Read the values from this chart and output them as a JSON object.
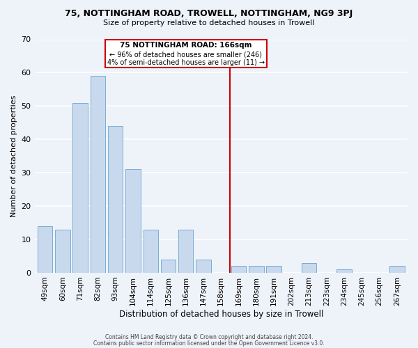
{
  "title1": "75, NOTTINGHAM ROAD, TROWELL, NOTTINGHAM, NG9 3PJ",
  "title2": "Size of property relative to detached houses in Trowell",
  "xlabel": "Distribution of detached houses by size in Trowell",
  "ylabel": "Number of detached properties",
  "bar_labels": [
    "49sqm",
    "60sqm",
    "71sqm",
    "82sqm",
    "93sqm",
    "104sqm",
    "114sqm",
    "125sqm",
    "136sqm",
    "147sqm",
    "158sqm",
    "169sqm",
    "180sqm",
    "191sqm",
    "202sqm",
    "213sqm",
    "223sqm",
    "234sqm",
    "245sqm",
    "256sqm",
    "267sqm"
  ],
  "bar_heights": [
    14,
    13,
    51,
    59,
    44,
    31,
    13,
    4,
    13,
    4,
    0,
    2,
    2,
    2,
    0,
    3,
    0,
    1,
    0,
    0,
    2
  ],
  "bar_color": "#c8d9ed",
  "bar_edge_color": "#7aadd4",
  "vline_x_index": 11,
  "vline_color": "#cc0000",
  "annotation_title": "75 NOTTINGHAM ROAD: 166sqm",
  "annotation_line1": "← 96% of detached houses are smaller (246)",
  "annotation_line2": "4% of semi-detached houses are larger (11) →",
  "box_facecolor": "#ffffff",
  "box_edgecolor": "#cc0000",
  "ylim": [
    0,
    70
  ],
  "yticks": [
    0,
    10,
    20,
    30,
    40,
    50,
    60,
    70
  ],
  "footnote1": "Contains HM Land Registry data © Crown copyright and database right 2024.",
  "footnote2": "Contains public sector information licensed under the Open Government Licence v3.0.",
  "background_color": "#eef2f9"
}
